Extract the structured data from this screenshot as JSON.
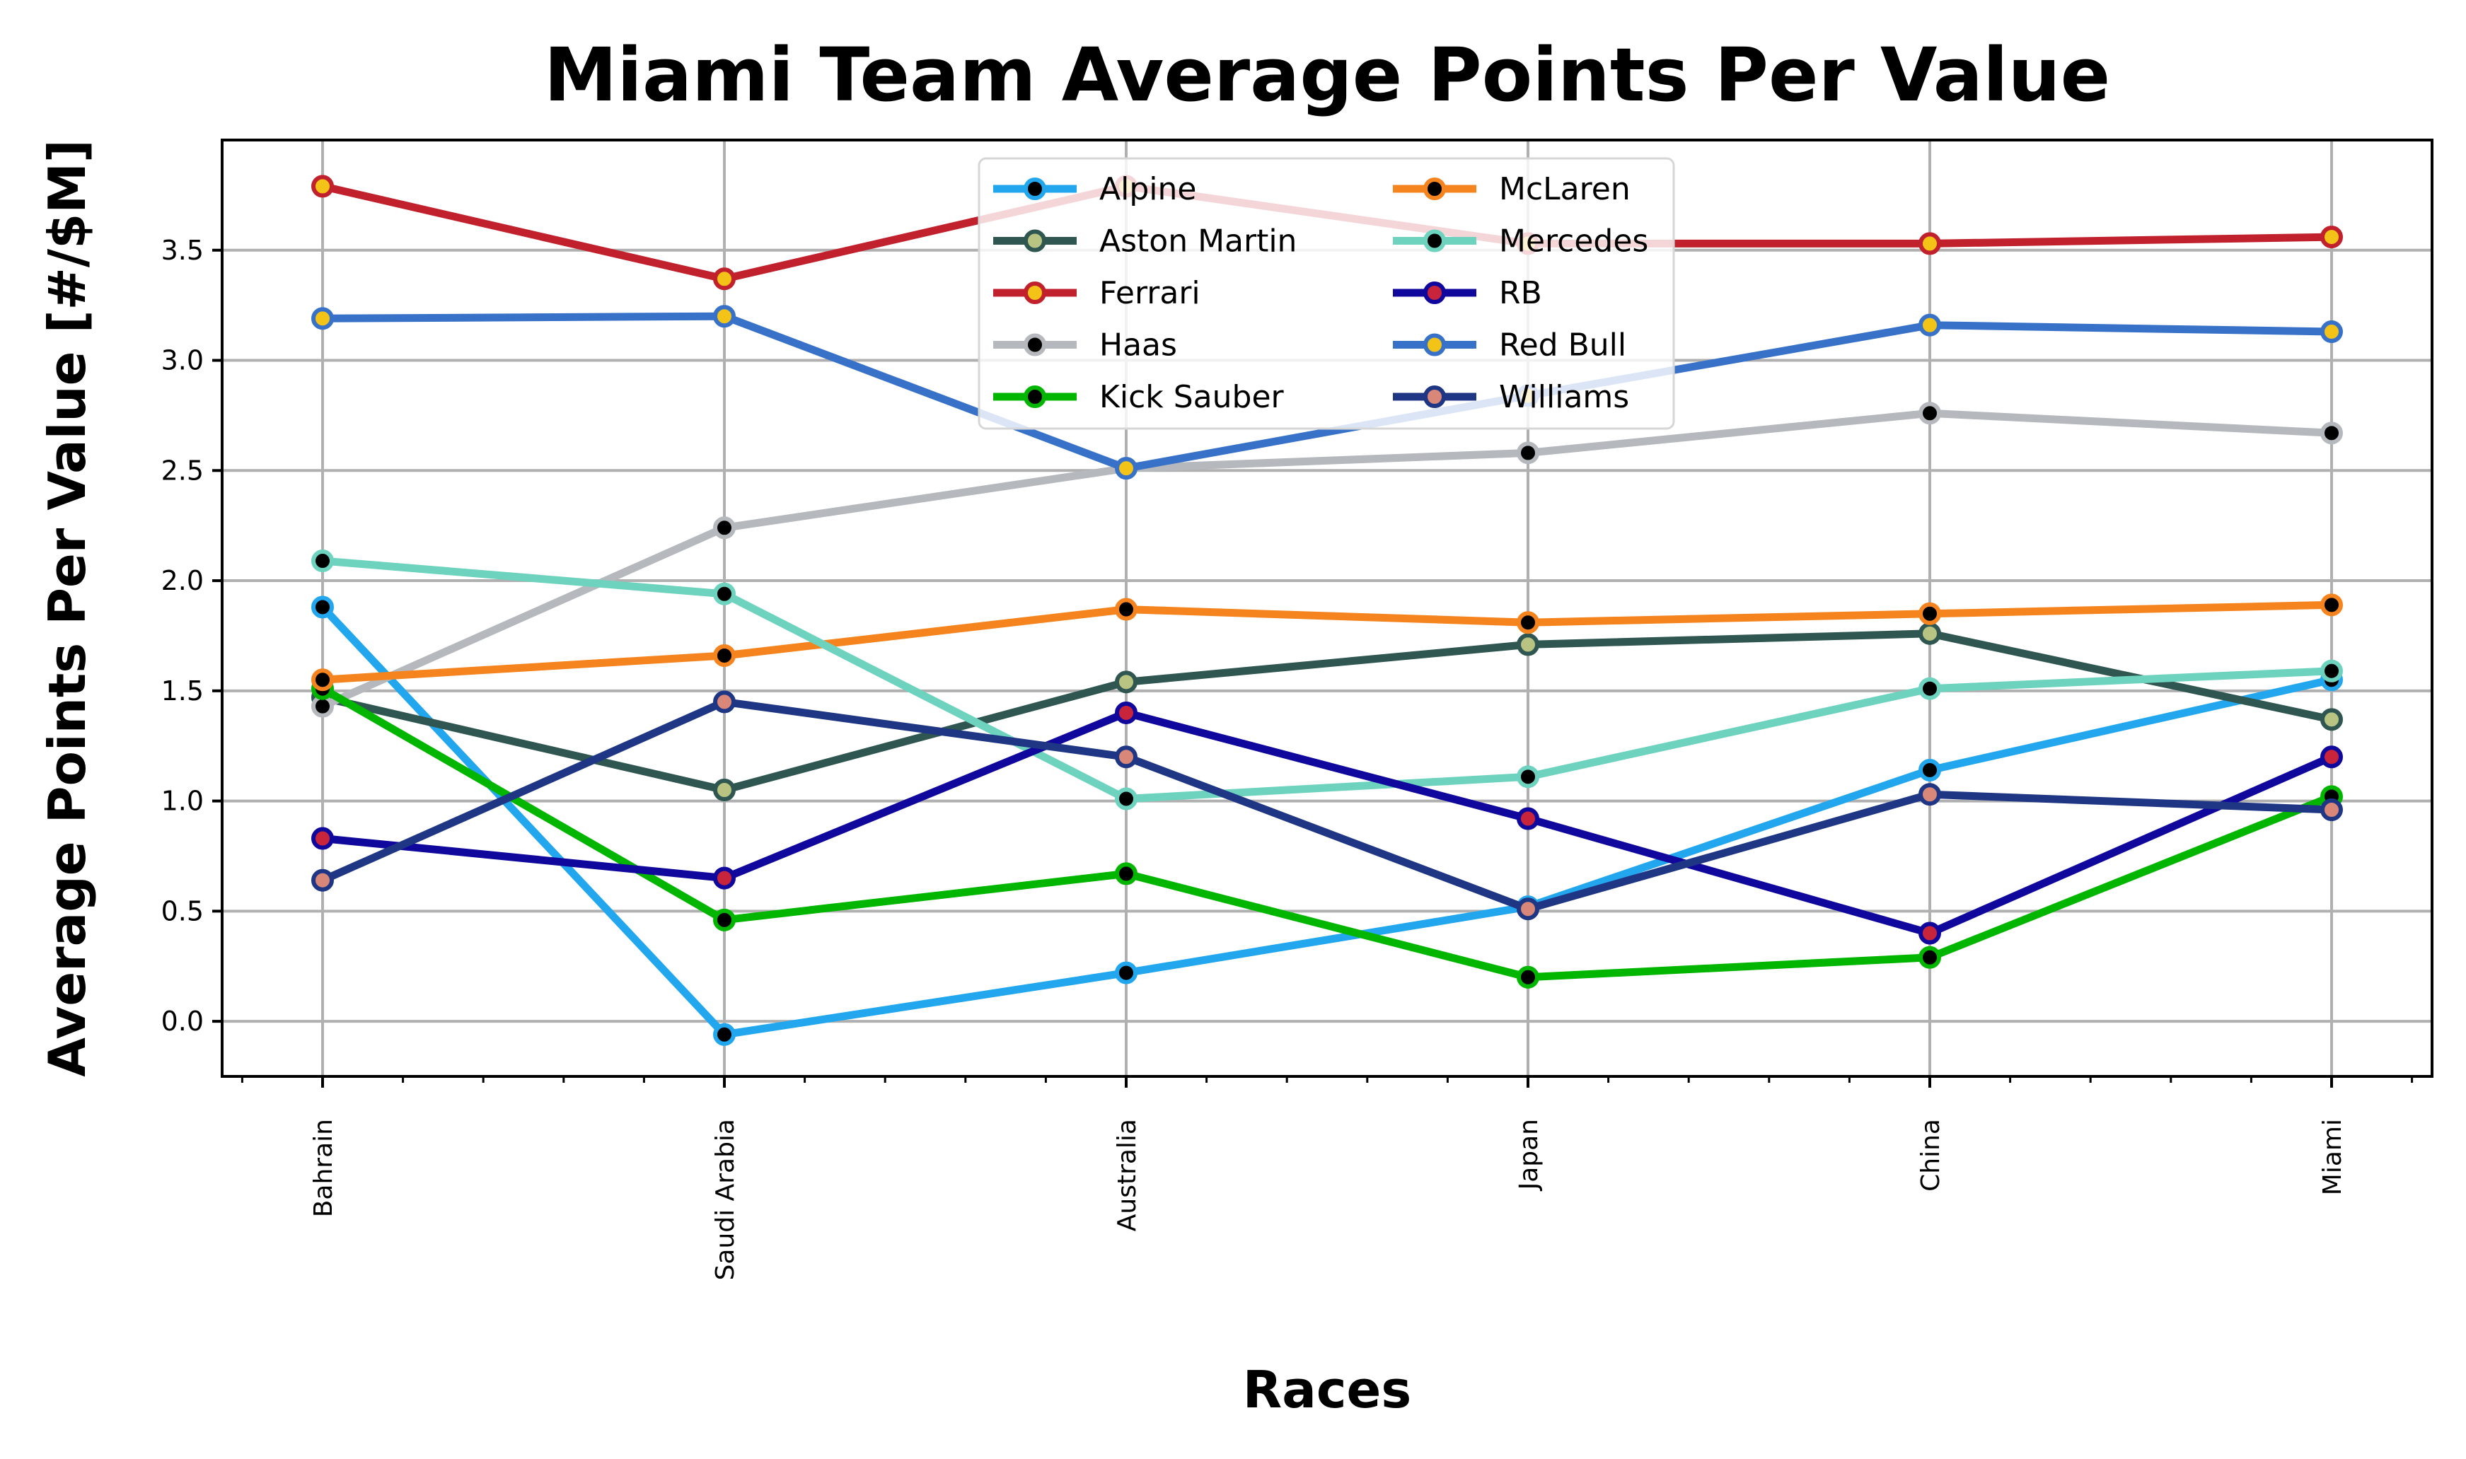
{
  "chart_data": {
    "type": "line",
    "title": "Miami Team Average Points Per Value",
    "xlabel": "Races",
    "ylabel": "Average Points Per Value [#/$M]",
    "categories": [
      "Bahrain",
      "Saudi Arabia",
      "Australia",
      "Japan",
      "China",
      "Miami"
    ],
    "ylim": [
      -0.25,
      4.0
    ],
    "yticks": [
      0.0,
      0.5,
      1.0,
      1.5,
      2.0,
      2.5,
      3.0,
      3.5
    ],
    "ytick_labels": [
      "0.0",
      "0.5",
      "1.0",
      "1.5",
      "2.0",
      "2.5",
      "3.0",
      "3.5"
    ],
    "grid": true,
    "legend_position": "top-center",
    "legend_columns": 2,
    "series": [
      {
        "name": "Alpine",
        "color": "#22a7ef",
        "marker_color": "#000000",
        "values": [
          1.88,
          -0.06,
          0.22,
          0.52,
          1.14,
          1.55
        ]
      },
      {
        "name": "Aston Martin",
        "color": "#2f5650",
        "marker_color": "#b9c483",
        "values": [
          1.47,
          1.05,
          1.54,
          1.71,
          1.76,
          1.37
        ]
      },
      {
        "name": "Ferrari",
        "color": "#c1202d",
        "marker_color": "#f3c318",
        "values": [
          3.79,
          3.37,
          3.79,
          3.53,
          3.53,
          3.56
        ]
      },
      {
        "name": "Haas",
        "color": "#b5b8bc",
        "marker_color": "#000000",
        "values": [
          1.43,
          2.24,
          2.51,
          2.58,
          2.76,
          2.67
        ]
      },
      {
        "name": "Kick Sauber",
        "color": "#02b600",
        "marker_color": "#000000",
        "values": [
          1.51,
          0.46,
          0.67,
          0.2,
          0.29,
          1.02
        ]
      },
      {
        "name": "McLaren",
        "color": "#f5841f",
        "marker_color": "#000000",
        "values": [
          1.55,
          1.66,
          1.87,
          1.81,
          1.85,
          1.89
        ]
      },
      {
        "name": "Mercedes",
        "color": "#6dd3bf",
        "marker_color": "#000000",
        "values": [
          2.09,
          1.94,
          1.01,
          1.11,
          1.51,
          1.59
        ]
      },
      {
        "name": "RB",
        "color": "#10079c",
        "marker_color": "#c8243b",
        "values": [
          0.83,
          0.65,
          1.4,
          0.92,
          0.4,
          1.2
        ]
      },
      {
        "name": "Red Bull",
        "color": "#3872c8",
        "marker_color": "#f3c318",
        "values": [
          3.19,
          3.2,
          2.51,
          2.84,
          3.16,
          3.13
        ]
      },
      {
        "name": "Williams",
        "color": "#1f3684",
        "marker_color": "#d98778",
        "values": [
          0.64,
          1.45,
          1.2,
          0.51,
          1.03,
          0.96
        ]
      }
    ]
  }
}
